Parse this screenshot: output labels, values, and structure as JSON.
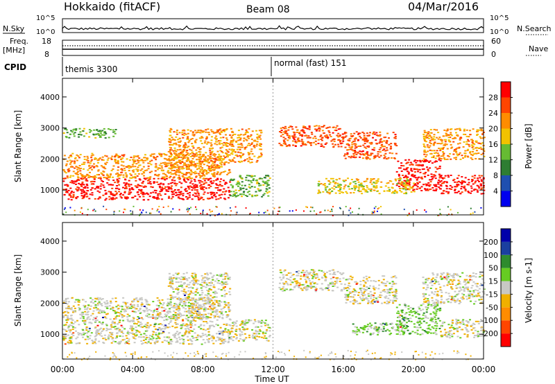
{
  "header": {
    "station": "Hokkaido (fitACF)",
    "beam": "Beam 08",
    "date": "04/Mar/2016"
  },
  "status_panels": {
    "nsky_label": "N.Sky",
    "nsky_ticks": [
      "10^5",
      "10^0"
    ],
    "nsearch_label": "N.Search",
    "freq_label": "Freq.",
    "freq_unit": "[MHz]",
    "freq_ticks": [
      "18",
      "8"
    ],
    "nave_label": "Nave",
    "nave_ticks": [
      "60",
      "0"
    ],
    "cpid_label": "CPID",
    "cpid_segments": [
      {
        "start": "00:00",
        "label": "themis 3300"
      },
      {
        "start": "12:00",
        "label": "normal (fast) 151"
      }
    ]
  },
  "colors": {
    "power_scale": [
      "#0000ee",
      "#1f4fb0",
      "#2e7d32",
      "#66bb33",
      "#f2c200",
      "#ff8c00",
      "#ff4500",
      "#ff0000"
    ],
    "velocity_scale": [
      "#ff0000",
      "#ff4500",
      "#ff8c00",
      "#f0b000",
      "#c8c8c4",
      "#66cc22",
      "#2e8b2e",
      "#1a3fa0",
      "#0000aa"
    ]
  },
  "chart_data": [
    {
      "type": "heatmap",
      "name": "power",
      "ylabel": "Slant Range [km]",
      "yticks": [
        "1000",
        "2000",
        "3000",
        "4000"
      ],
      "ylim": [
        200,
        4600
      ],
      "xlim": [
        "00:00",
        "24:00"
      ],
      "colorbar_label": "Power [dB]",
      "colorbar_ticks": [
        "4",
        "8",
        "12",
        "16",
        "20",
        "24",
        "28"
      ],
      "colorbar_range": [
        0,
        32
      ],
      "echo_regions": [
        {
          "t0": 0.0,
          "t1": 9.5,
          "r0": 700,
          "r1": 1400,
          "level": 7
        },
        {
          "t0": 0.0,
          "t1": 9.0,
          "r0": 1400,
          "r1": 2200,
          "level": 5
        },
        {
          "t0": 0.0,
          "t1": 3.0,
          "r0": 2700,
          "r1": 3000,
          "level": 3
        },
        {
          "t0": 6.0,
          "t1": 9.5,
          "r0": 1500,
          "r1": 3000,
          "level": 5
        },
        {
          "t0": 9.5,
          "t1": 11.3,
          "r0": 1900,
          "r1": 3000,
          "level": 5
        },
        {
          "t0": 9.5,
          "t1": 11.8,
          "r0": 800,
          "r1": 1500,
          "level": 3
        },
        {
          "t0": 12.3,
          "t1": 16.0,
          "r0": 2400,
          "r1": 3100,
          "level": 6
        },
        {
          "t0": 16.0,
          "t1": 19.0,
          "r0": 2000,
          "r1": 2900,
          "level": 6
        },
        {
          "t0": 19.0,
          "t1": 21.5,
          "r0": 1000,
          "r1": 2000,
          "level": 7
        },
        {
          "t0": 21.5,
          "t1": 24.0,
          "r0": 900,
          "r1": 1500,
          "level": 7
        },
        {
          "t0": 20.5,
          "t1": 24.0,
          "r0": 2000,
          "r1": 3000,
          "level": 5
        },
        {
          "t0": 14.5,
          "t1": 20.0,
          "r0": 900,
          "r1": 1400,
          "level": 4
        }
      ]
    },
    {
      "type": "heatmap",
      "name": "velocity",
      "ylabel": "Slant Range [km]",
      "yticks": [
        "1000",
        "2000",
        "3000",
        "4000"
      ],
      "ylim": [
        200,
        4600
      ],
      "xlim": [
        "00:00",
        "24:00"
      ],
      "xticks": [
        "00:00",
        "04:00",
        "08:00",
        "12:00",
        "16:00",
        "20:00",
        "00:00"
      ],
      "xlabel": "Time UT",
      "colorbar_label": "Velocity [m s-1]",
      "colorbar_ticks": [
        "200",
        "100",
        "50",
        "15",
        "-15",
        "-50",
        "-100",
        "-200"
      ],
      "colorbar_range": [
        -250,
        250
      ],
      "echo_regions": [
        {
          "t0": 0.0,
          "t1": 9.5,
          "r0": 700,
          "r1": 1400,
          "level": 4
        },
        {
          "t0": 0.0,
          "t1": 9.0,
          "r0": 1400,
          "r1": 2200,
          "level": 4
        },
        {
          "t0": 6.0,
          "t1": 9.5,
          "r0": 1500,
          "r1": 3000,
          "level": 4
        },
        {
          "t0": 9.5,
          "t1": 11.8,
          "r0": 800,
          "r1": 1500,
          "level": 4
        },
        {
          "t0": 12.3,
          "t1": 16.0,
          "r0": 2400,
          "r1": 3100,
          "level": 4
        },
        {
          "t0": 16.0,
          "t1": 19.0,
          "r0": 2000,
          "r1": 2900,
          "level": 4
        },
        {
          "t0": 19.0,
          "t1": 21.5,
          "r0": 1000,
          "r1": 2000,
          "level": 5
        },
        {
          "t0": 21.5,
          "t1": 24.0,
          "r0": 900,
          "r1": 1500,
          "level": 4
        },
        {
          "t0": 20.5,
          "t1": 24.0,
          "r0": 2000,
          "r1": 3000,
          "level": 4
        },
        {
          "t0": 16.5,
          "t1": 19.5,
          "r0": 1000,
          "r1": 1400,
          "level": 5
        }
      ]
    }
  ]
}
